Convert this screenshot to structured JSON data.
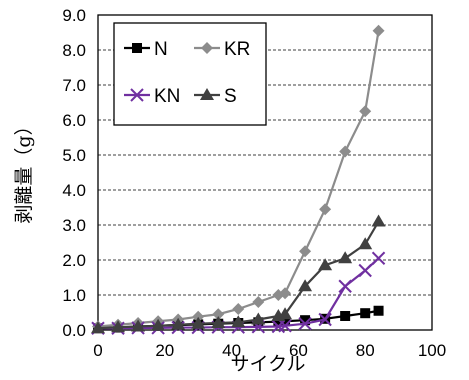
{
  "chart_data": {
    "type": "line",
    "xlabel": "サイクル",
    "ylabel": "剥離量（g）",
    "xlim": [
      0,
      100
    ],
    "ylim": [
      0,
      9
    ],
    "xticks": [
      "0",
      "20",
      "40",
      "60",
      "80",
      "100"
    ],
    "yticks": [
      "0.0",
      "1.0",
      "2.0",
      "3.0",
      "4.0",
      "5.0",
      "6.0",
      "7.0",
      "8.0",
      "9.0"
    ],
    "grid": "horizontal dashed",
    "legend_position": "top-left",
    "series": [
      {
        "name": "N",
        "marker": "square",
        "color": "#000000",
        "x": [
          0,
          6,
          12,
          18,
          24,
          30,
          36,
          42,
          48,
          54,
          56,
          62,
          68,
          74,
          80,
          84
        ],
        "y": [
          0.05,
          0.07,
          0.1,
          0.12,
          0.14,
          0.16,
          0.18,
          0.2,
          0.22,
          0.24,
          0.25,
          0.28,
          0.32,
          0.4,
          0.48,
          0.55
        ]
      },
      {
        "name": "KR",
        "marker": "diamond",
        "color": "#8c8c8c",
        "x": [
          0,
          6,
          12,
          18,
          24,
          30,
          36,
          42,
          48,
          54,
          56,
          62,
          68,
          74,
          80,
          84
        ],
        "y": [
          0.1,
          0.15,
          0.2,
          0.25,
          0.3,
          0.38,
          0.45,
          0.6,
          0.8,
          1.0,
          1.05,
          2.25,
          3.45,
          5.1,
          6.25,
          8.55
        ]
      },
      {
        "name": "KN",
        "marker": "x",
        "color": "#7030a0",
        "x": [
          0,
          6,
          12,
          18,
          24,
          30,
          36,
          42,
          48,
          54,
          56,
          62,
          68,
          74,
          80,
          84
        ],
        "y": [
          0.05,
          0.05,
          0.06,
          0.06,
          0.07,
          0.07,
          0.08,
          0.08,
          0.09,
          0.1,
          0.12,
          0.18,
          0.3,
          1.25,
          1.7,
          2.05
        ]
      },
      {
        "name": "S",
        "marker": "triangle",
        "color": "#404040",
        "x": [
          0,
          6,
          12,
          18,
          24,
          30,
          36,
          42,
          48,
          54,
          56,
          62,
          68,
          74,
          80,
          84
        ],
        "y": [
          0.05,
          0.08,
          0.1,
          0.12,
          0.15,
          0.18,
          0.2,
          0.22,
          0.3,
          0.4,
          0.45,
          1.25,
          1.85,
          2.05,
          2.45,
          3.1
        ]
      }
    ]
  }
}
